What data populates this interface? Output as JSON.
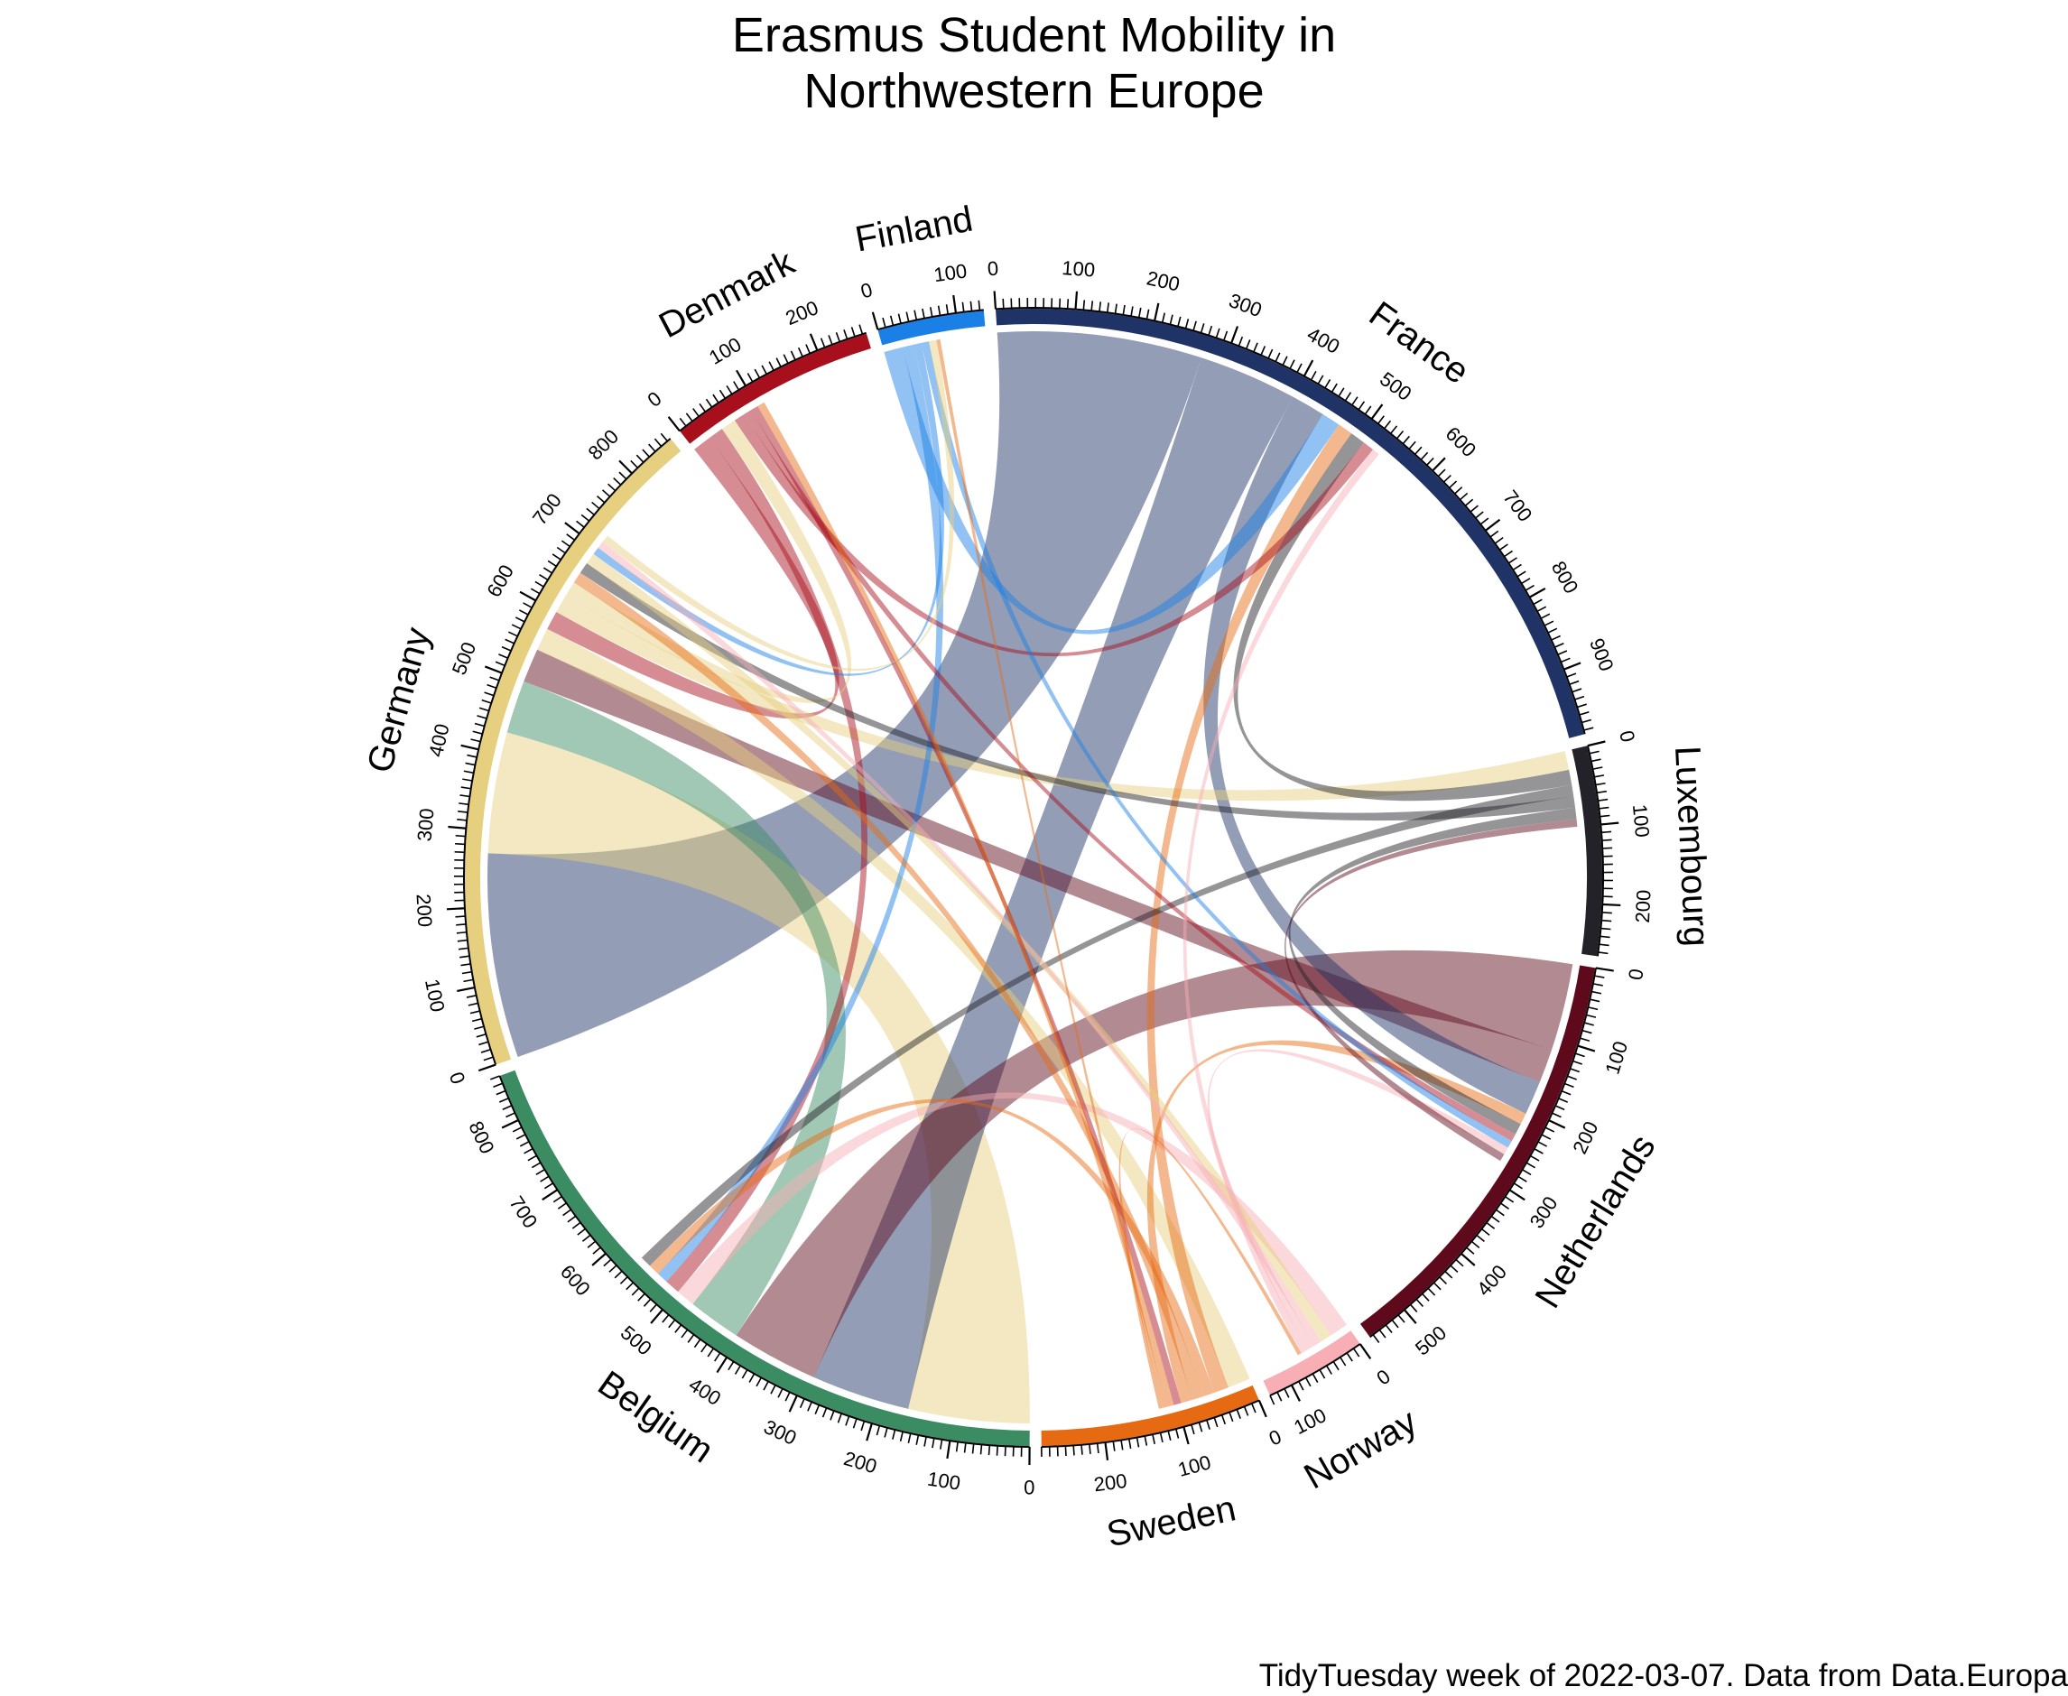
{
  "chart_data": {
    "type": "chord",
    "title_lines": [
      "Erasmus Student Mobility in",
      "Northwestern Europe"
    ],
    "caption": "TidyTuesday week of 2022-03-07. Data from Data.Europa",
    "tick_interval": 100,
    "sectors": [
      {
        "name": "Belgium",
        "total": 860,
        "color": "#3B8C63",
        "tick_labels": [
          "0",
          "100",
          "200",
          "300",
          "400",
          "500",
          "600",
          "700",
          "800"
        ]
      },
      {
        "name": "Germany",
        "total": 865,
        "color": "#E6CF7E",
        "tick_labels": [
          "0",
          "100",
          "200",
          "300",
          "400",
          "500",
          "600",
          "700",
          "800"
        ]
      },
      {
        "name": "Denmark",
        "total": 265,
        "color": "#A80F1C",
        "tick_labels": [
          "0",
          "100",
          "200"
        ]
      },
      {
        "name": "Finland",
        "total": 135,
        "color": "#1A80E6",
        "tick_labels": [
          "0",
          "100"
        ]
      },
      {
        "name": "France",
        "total": 985,
        "color": "#1F3366",
        "tick_labels": [
          "0",
          "100",
          "200",
          "300",
          "400",
          "500",
          "600",
          "700",
          "800",
          "900"
        ]
      },
      {
        "name": "Luxembourg",
        "total": 265,
        "color": "#222228",
        "tick_labels": [
          "0",
          "100",
          "200"
        ]
      },
      {
        "name": "Netherlands",
        "total": 555,
        "color": "#5E0A1C",
        "tick_labels": [
          "0",
          "100",
          "200",
          "300",
          "400",
          "500"
        ]
      },
      {
        "name": "Norway",
        "total": 130,
        "color": "#F7AEB4",
        "tick_labels": [
          "0",
          "100"
        ]
      },
      {
        "name": "Sweden",
        "total": 280,
        "color": "#E66A12",
        "tick_labels": [
          "0",
          "100",
          "200"
        ]
      }
    ],
    "flows": [
      {
        "source": "Germany",
        "target": "Belgium",
        "value": 160
      },
      {
        "source": "France",
        "target": "Belgium",
        "value": 130
      },
      {
        "source": "Netherlands",
        "target": "Belgium",
        "value": 115
      },
      {
        "source": "Norway",
        "target": "Belgium",
        "value": 25
      },
      {
        "source": "Denmark",
        "target": "Belgium",
        "value": 20
      },
      {
        "source": "Finland",
        "target": "Belgium",
        "value": 15
      },
      {
        "source": "Sweden",
        "target": "Belgium",
        "value": 15
      },
      {
        "source": "Luxembourg",
        "target": "Belgium",
        "value": 15
      },
      {
        "source": "France",
        "target": "Germany",
        "value": 270
      },
      {
        "source": "Belgium",
        "target": "Germany",
        "value": 70
      },
      {
        "source": "Netherlands",
        "target": "Germany",
        "value": 45
      },
      {
        "source": "Denmark",
        "target": "Germany",
        "value": 25
      },
      {
        "source": "Sweden",
        "target": "Germany",
        "value": 15
      },
      {
        "source": "Luxembourg",
        "target": "Germany",
        "value": 15
      },
      {
        "source": "Finland",
        "target": "Germany",
        "value": 10
      },
      {
        "source": "Norway",
        "target": "Germany",
        "value": 10
      },
      {
        "source": "France",
        "target": "Netherlands",
        "value": 45
      },
      {
        "source": "Sweden",
        "target": "Netherlands",
        "value": 15
      },
      {
        "source": "Luxembourg",
        "target": "Netherlands",
        "value": 15
      },
      {
        "source": "Denmark",
        "target": "Netherlands",
        "value": 10
      },
      {
        "source": "Finland",
        "target": "Netherlands",
        "value": 10
      },
      {
        "source": "Norway",
        "target": "Netherlands",
        "value": 10
      },
      {
        "source": "Finland",
        "target": "France",
        "value": 25
      },
      {
        "source": "Sweden",
        "target": "France",
        "value": 20
      },
      {
        "source": "Denmark",
        "target": "France",
        "value": 15
      },
      {
        "source": "Luxembourg",
        "target": "France",
        "value": 20
      },
      {
        "source": "Norway",
        "target": "France",
        "value": 10
      },
      {
        "source": "Germany",
        "target": "Sweden",
        "value": 30
      },
      {
        "source": "Denmark",
        "target": "Sweden",
        "value": 10
      },
      {
        "source": "Germany",
        "target": "Denmark",
        "value": 20
      },
      {
        "source": "Sweden",
        "target": "Denmark",
        "value": 10
      },
      {
        "source": "Germany",
        "target": "Finland",
        "value": 10
      },
      {
        "source": "Sweden",
        "target": "Finland",
        "value": 5
      },
      {
        "source": "Germany",
        "target": "Luxembourg",
        "value": 25
      },
      {
        "source": "Netherlands",
        "target": "Luxembourg",
        "value": 10
      },
      {
        "source": "Germany",
        "target": "Norway",
        "value": 15
      },
      {
        "source": "Sweden",
        "target": "Norway",
        "value": 5
      }
    ]
  }
}
